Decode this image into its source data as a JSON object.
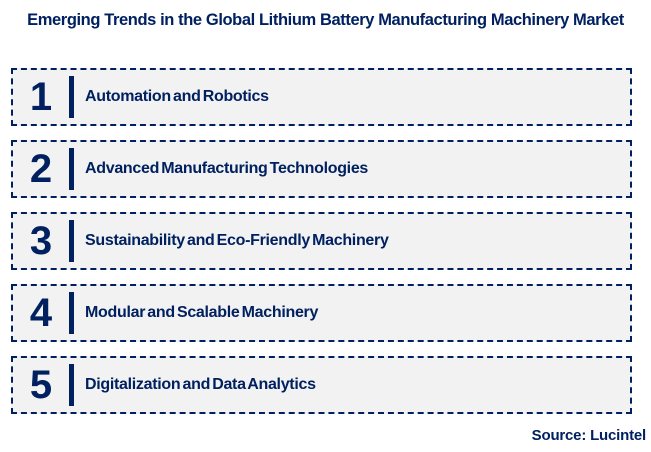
{
  "title": "Emerging Trends in the Global Lithium Battery Manufacturing Machinery Market",
  "source": "Source: Lucintel",
  "colors": {
    "navy": "#002060",
    "box_background": "#F2F2F2",
    "page_background": "#FFFFFF"
  },
  "trends": [
    {
      "number": "1",
      "label": "Automation and Robotics"
    },
    {
      "number": "2",
      "label": "Advanced Manufacturing Technologies"
    },
    {
      "number": "3",
      "label": "Sustainability and Eco-Friendly Machinery"
    },
    {
      "number": "4",
      "label": "Modular and Scalable Machinery"
    },
    {
      "number": "5",
      "label": "Digitalization and Data Analytics"
    }
  ]
}
